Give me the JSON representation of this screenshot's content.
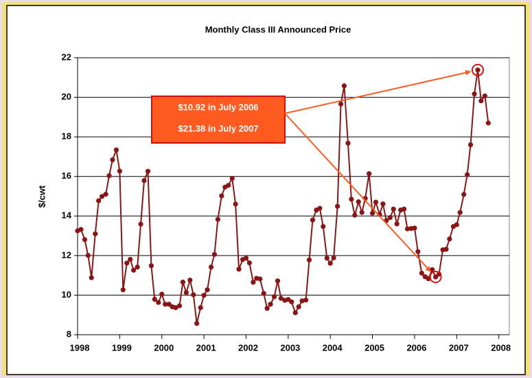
{
  "chart_data": {
    "type": "line",
    "title": "Monthly Class III Announced Price",
    "ylabel": "$/cwt",
    "x": [
      1998,
      1998.08,
      1998.17,
      1998.25,
      1998.33,
      1998.42,
      1998.5,
      1998.58,
      1998.67,
      1998.75,
      1998.83,
      1998.92,
      1999,
      1999.08,
      1999.17,
      1999.25,
      1999.33,
      1999.42,
      1999.5,
      1999.58,
      1999.67,
      1999.75,
      1999.83,
      1999.92,
      2000,
      2000.08,
      2000.17,
      2000.25,
      2000.33,
      2000.42,
      2000.5,
      2000.58,
      2000.67,
      2000.75,
      2000.83,
      2000.92,
      2001,
      2001.08,
      2001.17,
      2001.25,
      2001.33,
      2001.42,
      2001.5,
      2001.58,
      2001.67,
      2001.75,
      2001.83,
      2001.92,
      2002,
      2002.08,
      2002.17,
      2002.25,
      2002.33,
      2002.42,
      2002.5,
      2002.58,
      2002.67,
      2002.75,
      2002.83,
      2002.92,
      2003,
      2003.08,
      2003.17,
      2003.25,
      2003.33,
      2003.42,
      2003.5,
      2003.58,
      2003.67,
      2003.75,
      2003.83,
      2003.92,
      2004,
      2004.08,
      2004.17,
      2004.25,
      2004.33,
      2004.42,
      2004.5,
      2004.58,
      2004.67,
      2004.75,
      2004.83,
      2004.92,
      2005,
      2005.08,
      2005.17,
      2005.25,
      2005.33,
      2005.42,
      2005.5,
      2005.58,
      2005.67,
      2005.75,
      2005.83,
      2005.92,
      2006,
      2006.08,
      2006.17,
      2006.25,
      2006.33,
      2006.42,
      2006.5,
      2006.58,
      2006.67,
      2006.75,
      2006.83,
      2006.92,
      2007,
      2007.08,
      2007.17,
      2007.25,
      2007.33,
      2007.42,
      2007.5,
      2007.58,
      2007.67,
      2007.75
    ],
    "series": [
      {
        "name": "Class III",
        "color": "#8b1515",
        "values": [
          13.25,
          13.32,
          12.81,
          12.01,
          10.88,
          13.1,
          14.77,
          14.99,
          15.1,
          16.04,
          16.84,
          17.34,
          16.27,
          10.27,
          11.62,
          11.81,
          11.26,
          11.42,
          13.59,
          15.79,
          16.26,
          11.49,
          9.79,
          9.63,
          10.05,
          9.54,
          9.54,
          9.41,
          9.37,
          9.46,
          10.66,
          10.13,
          10.76,
          10.02,
          8.57,
          9.37,
          9.99,
          10.27,
          11.42,
          12.06,
          13.83,
          15.02,
          15.46,
          15.55,
          15.9,
          14.6,
          11.31,
          11.8,
          11.87,
          11.63,
          10.65,
          10.85,
          10.82,
          10.09,
          9.33,
          9.54,
          9.92,
          10.72,
          9.84,
          9.74,
          9.78,
          9.66,
          9.11,
          9.41,
          9.71,
          9.75,
          11.78,
          13.8,
          14.3,
          14.39,
          13.47,
          11.87,
          11.61,
          11.89,
          14.49,
          19.66,
          20.58,
          17.68,
          14.85,
          14.04,
          14.72,
          14.18,
          14.89,
          16.14,
          14.14,
          14.7,
          14.08,
          14.61,
          13.77,
          13.92,
          14.35,
          13.6,
          14.3,
          14.35,
          13.35,
          13.37,
          13.39,
          12.2,
          11.11,
          10.93,
          10.83,
          11.29,
          10.92,
          11.06,
          12.29,
          12.32,
          12.84,
          13.47,
          13.56,
          14.18,
          15.09,
          16.09,
          17.6,
          20.17,
          21.38,
          19.82,
          20.07,
          18.7
        ]
      }
    ],
    "xlim": [
      1998,
      2008.25
    ],
    "xticks": [
      1998,
      1999,
      2000,
      2001,
      2002,
      2003,
      2004,
      2005,
      2006,
      2007,
      2008
    ],
    "ylim": [
      8,
      22
    ],
    "yticks": [
      8,
      10,
      12,
      14,
      16,
      18,
      20,
      22
    ],
    "grid": true,
    "annotations": [
      {
        "text": "$10.92 in July 2006",
        "point": 102
      },
      {
        "text": "$21.38 in July 2007",
        "point": 114
      }
    ],
    "annotation_color": "#ff5a1f"
  }
}
